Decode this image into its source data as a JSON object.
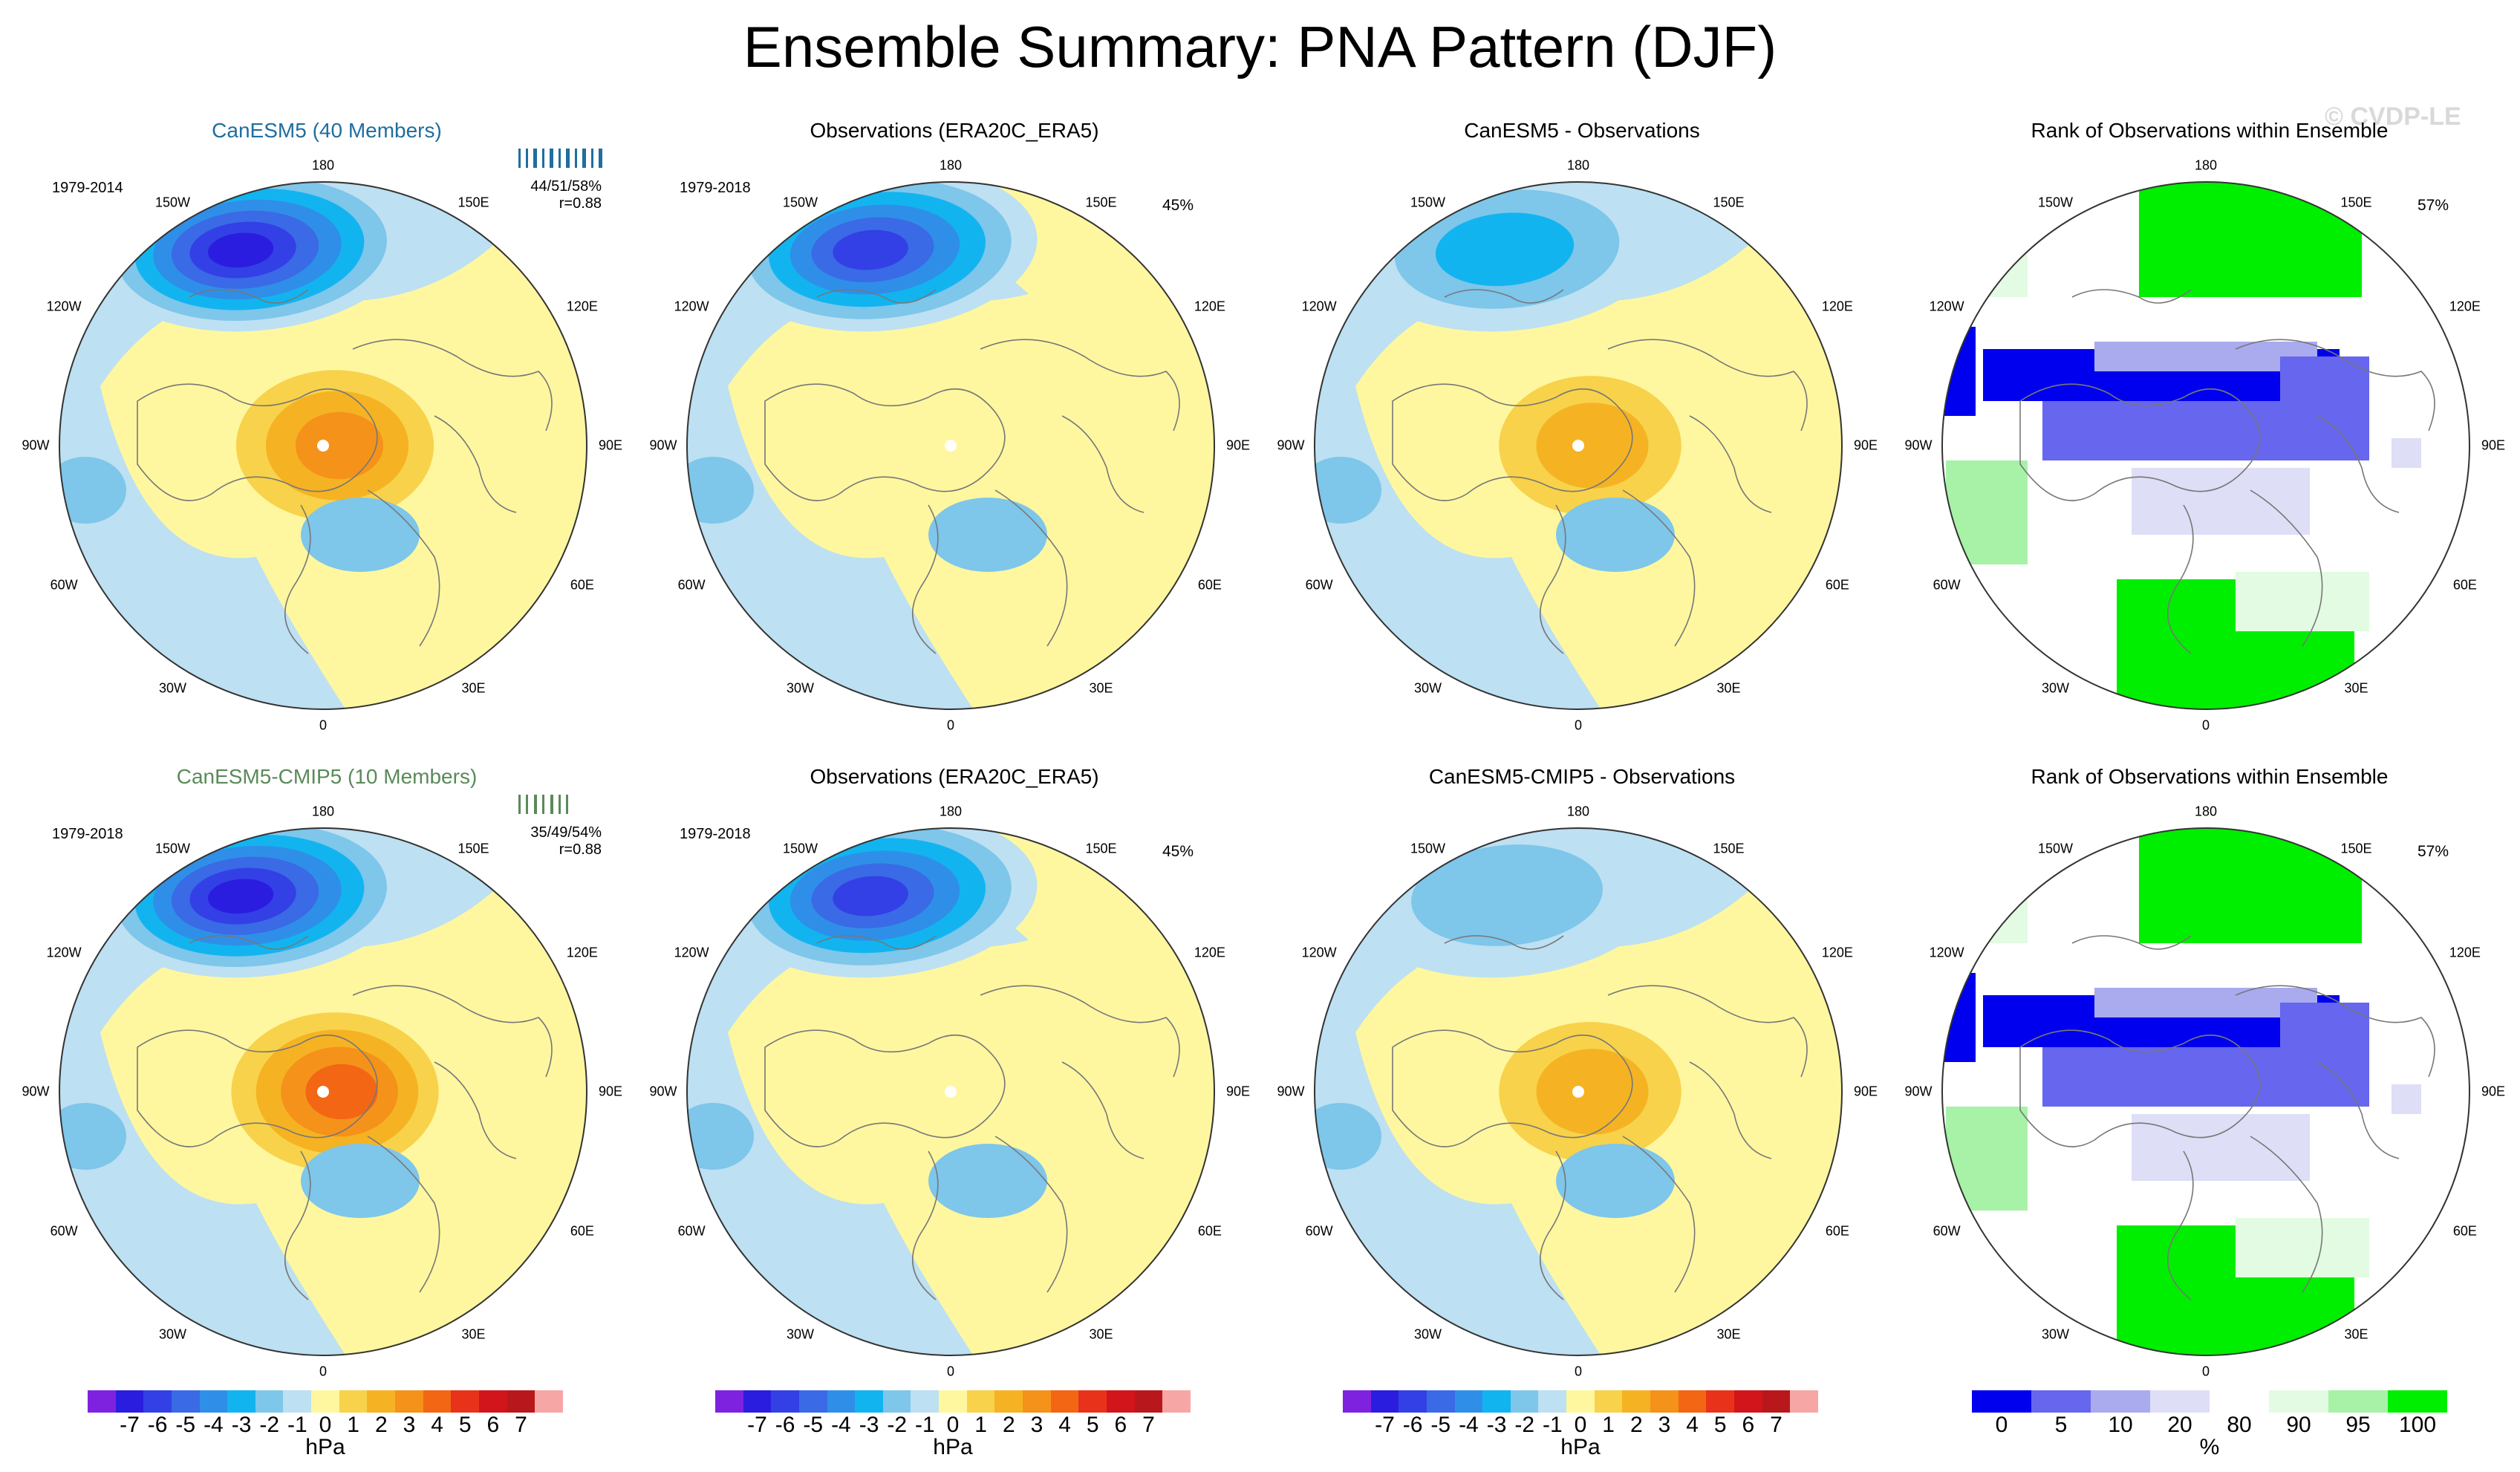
{
  "title": "Ensemble Summary: PNA Pattern (DJF)",
  "watermark": "© CVDP-LE",
  "lon_labels": {
    "n": "180",
    "nw": "150W",
    "ne": "150E",
    "wnw": "120W",
    "ene": "120E",
    "w": "90W",
    "e": "90E",
    "wsw": "60W",
    "ese": "60E",
    "sw": "30W",
    "se": "30E",
    "s": "0"
  },
  "panels": [
    {
      "title": "CanESM5 (40 Members)",
      "title_color": "#1f6e9e",
      "period": "1979-2014",
      "stats": "44/51/58%",
      "r": "r=0.88",
      "kind": "model",
      "low_max": -7,
      "high_max": 4
    },
    {
      "title": "Observations (ERA20C_ERA5)",
      "title_color": "#000000",
      "period": "1979-2018",
      "pct": "45%",
      "kind": "obs",
      "low_max": -6,
      "high_max": 1
    },
    {
      "title": "CanESM5 - Observations",
      "title_color": "#000000",
      "period": "",
      "kind": "diff",
      "low_max": -3,
      "high_max": 3
    },
    {
      "title": "Rank of Observations within Ensemble",
      "title_color": "#000000",
      "period": "",
      "pct": "57%",
      "kind": "rank"
    },
    {
      "title": "CanESM5-CMIP5 (10 Members)",
      "title_color": "#5a8a5a",
      "period": "1979-2018",
      "stats": "35/49/54%",
      "r": "r=0.88",
      "kind": "model",
      "low_max": -7,
      "high_max": 5
    },
    {
      "title": "Observations (ERA20C_ERA5)",
      "title_color": "#000000",
      "period": "1979-2018",
      "pct": "45%",
      "kind": "obs",
      "low_max": -6,
      "high_max": 1
    },
    {
      "title": "CanESM5-CMIP5 - Observations",
      "title_color": "#000000",
      "period": "",
      "kind": "diff",
      "low_max": -2,
      "high_max": 3
    },
    {
      "title": "Rank of Observations within Ensemble",
      "title_color": "#000000",
      "period": "",
      "pct": "57%",
      "kind": "rank"
    }
  ],
  "colorbar_hpa": {
    "unit": "hPa",
    "ticks": [
      "-7",
      "-6",
      "-5",
      "-4",
      "-3",
      "-2",
      "-1",
      "0",
      "1",
      "2",
      "3",
      "4",
      "5",
      "6",
      "7"
    ],
    "colors": [
      "#7f22e0",
      "#2a1de0",
      "#3340e6",
      "#3a6ae6",
      "#2f8fe8",
      "#12b4f0",
      "#7ec6ea",
      "#bde0f2",
      "#fef7a0",
      "#f8d24a",
      "#f5b323",
      "#f5921a",
      "#f36614",
      "#e8321a",
      "#d1151a",
      "#b8181c",
      "#f7a6a6"
    ]
  },
  "colorbar_rank": {
    "unit": "%",
    "ticks": [
      "0",
      "5",
      "10",
      "20",
      "80",
      "90",
      "95",
      "100"
    ],
    "colors": [
      "#0000ee",
      "#6666ee",
      "#aaaaee",
      "#dedef6",
      "#ffffff",
      "#e2fbe2",
      "#a7f2a7",
      "#00ee00"
    ]
  }
}
